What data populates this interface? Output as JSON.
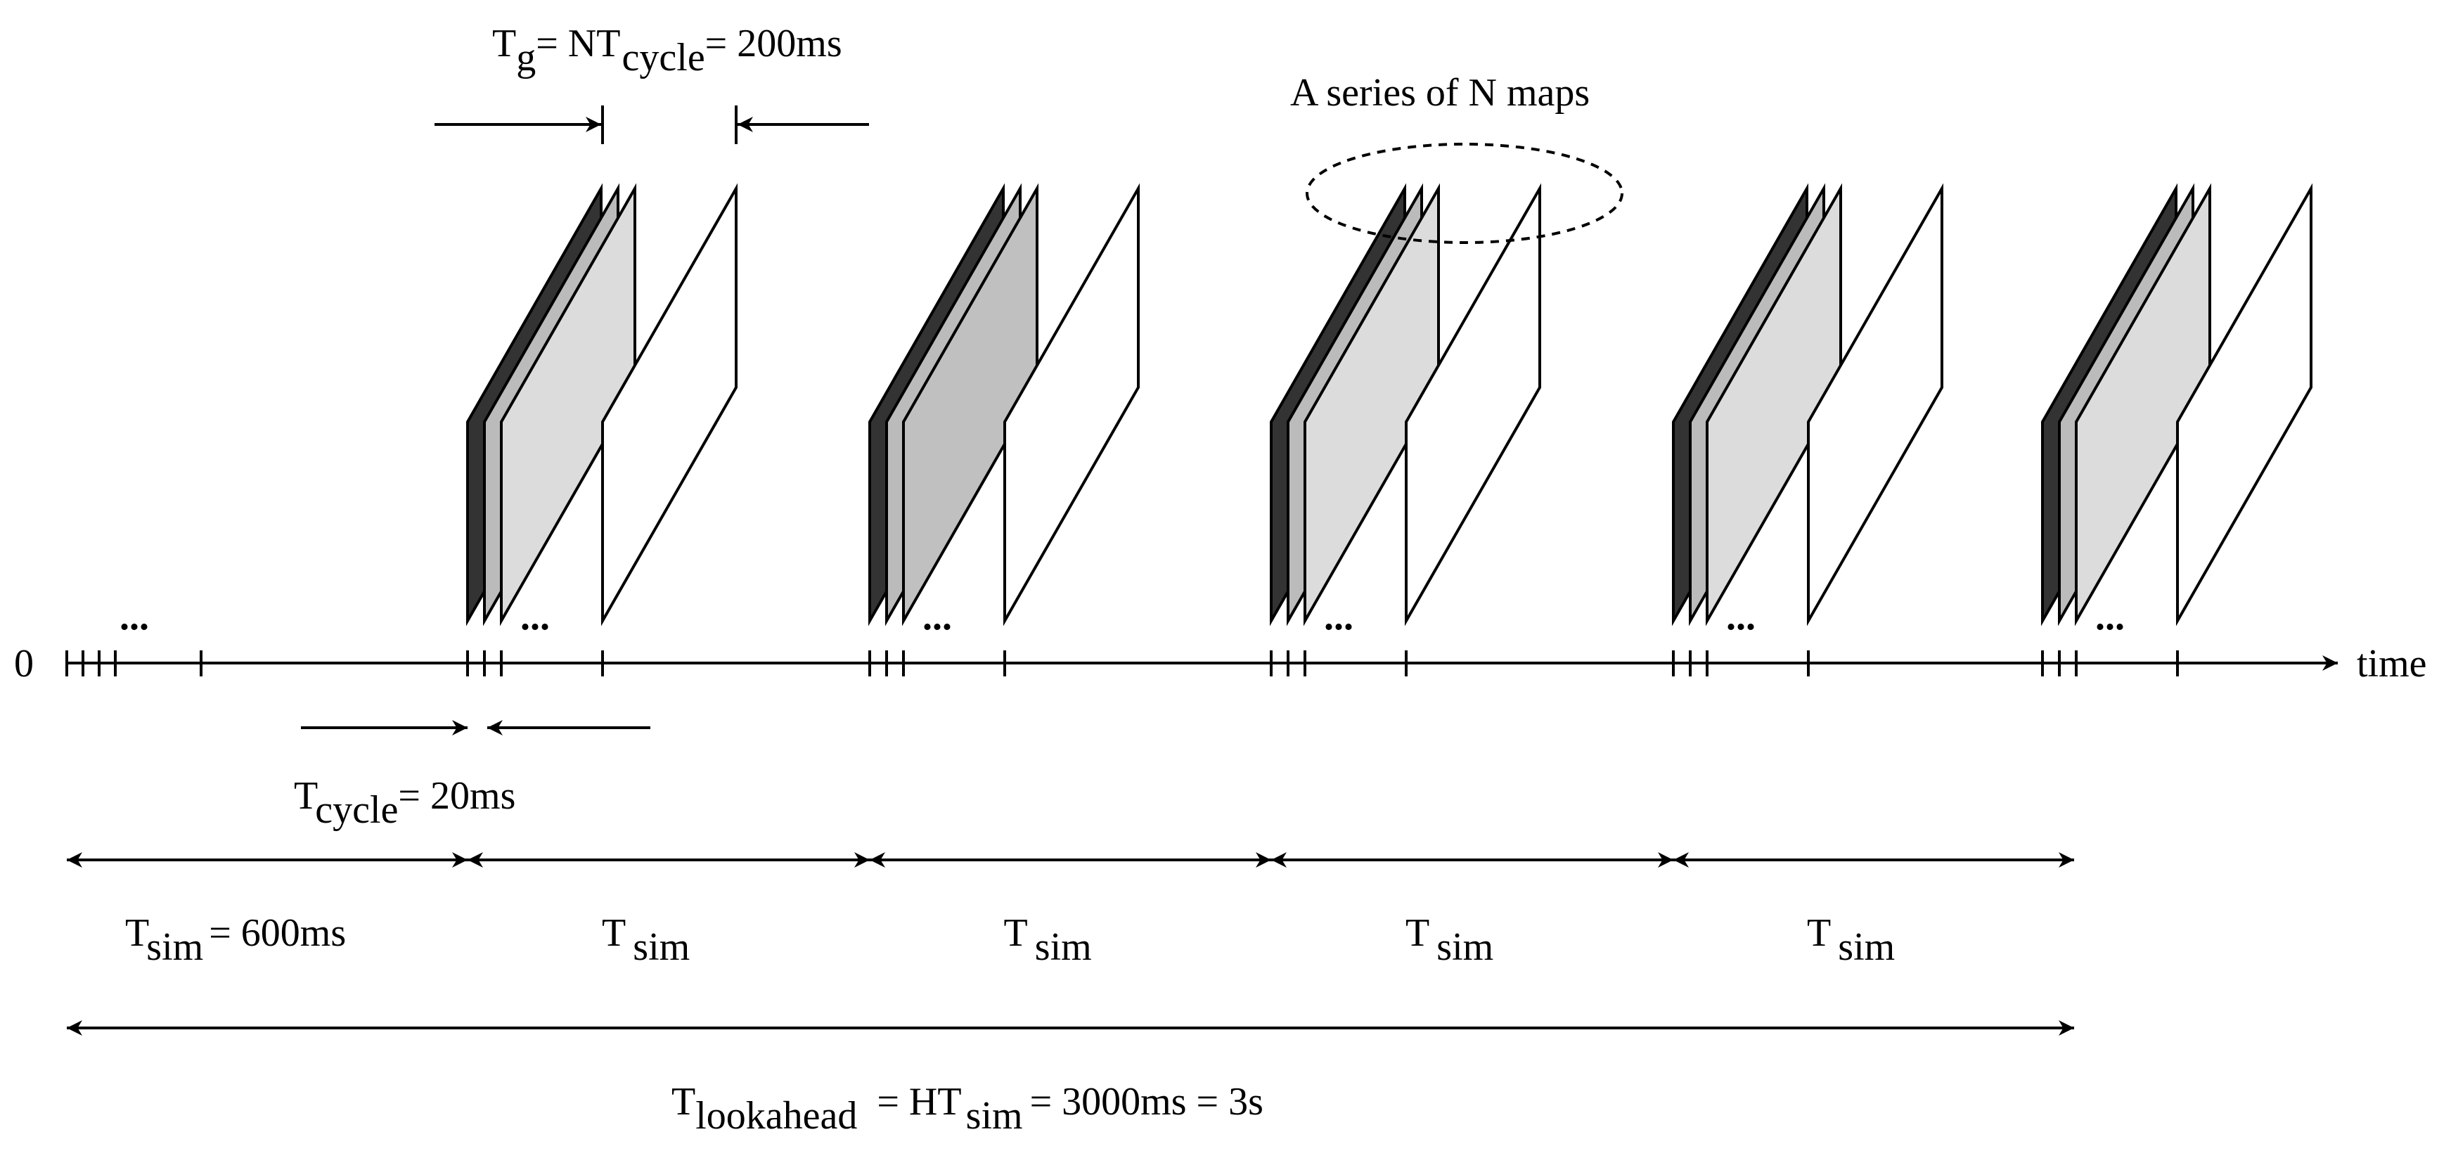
{
  "diagram": {
    "axis": {
      "origin_label": "0",
      "end_label": "time",
      "ellipsis": "..."
    },
    "group_interval": {
      "lhs_T": "T",
      "lhs_sub": "g",
      "eq_NT": "= NT",
      "cycle_sub": "cycle",
      "rhs": "= 200ms"
    },
    "cycle": {
      "T": "T",
      "sub": "cycle",
      "rhs": "= 20ms"
    },
    "series_label": "A series of N maps",
    "sim_spans": [
      {
        "T": "T",
        "sub": "sim",
        "rhs": "= 600ms"
      },
      {
        "T": "T",
        "sub": "sim",
        "rhs": ""
      },
      {
        "T": "T",
        "sub": "sim",
        "rhs": ""
      },
      {
        "T": "T",
        "sub": "sim",
        "rhs": ""
      },
      {
        "T": "T",
        "sub": "sim",
        "rhs": ""
      }
    ],
    "lookahead": {
      "T": "T",
      "sub": "lookahead",
      "eq_HT": "= HT",
      "sim_sub": "sim",
      "rhs": "= 3000ms = 3s"
    },
    "colors": {
      "dark_map": "#333333",
      "mid_map": "#bbbbbb",
      "light_map": "#dcdcdc",
      "light_map_alt": "#c0c0c0",
      "last_map": "#ffffff",
      "line": "#000000"
    }
  }
}
